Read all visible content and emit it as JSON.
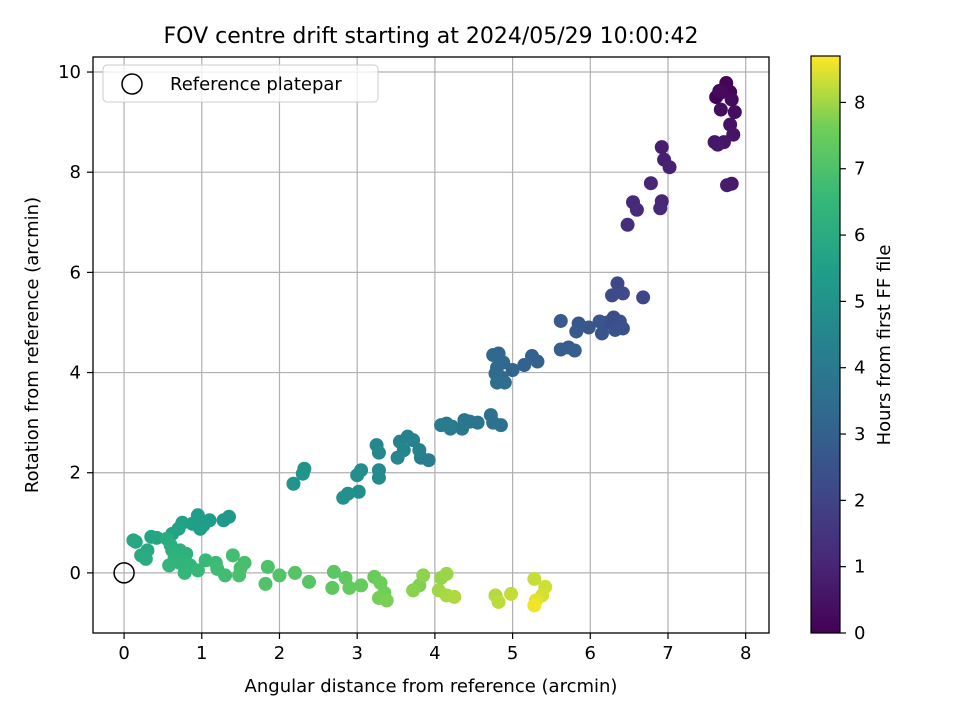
{
  "chart_data": {
    "type": "scatter",
    "title": "FOV centre drift starting at 2024/05/29 10:00:42",
    "xlabel": "Angular distance from reference (arcmin)",
    "ylabel": "Rotation from reference (arcmin)",
    "xlim": [
      -0.4,
      8.3
    ],
    "ylim": [
      -1.2,
      10.3
    ],
    "xticks": [
      "0",
      "1",
      "2",
      "3",
      "4",
      "5",
      "6",
      "7",
      "8"
    ],
    "yticks": [
      "0",
      "2",
      "4",
      "6",
      "8",
      "10"
    ],
    "grid": true,
    "legend": {
      "position": "top-left",
      "entries": [
        "Reference platepar"
      ]
    },
    "reference_point": {
      "x": 0,
      "y": 0,
      "label": "Reference platepar"
    },
    "colorbar": {
      "label": "Hours from first FF file",
      "range": [
        0,
        8.7
      ],
      "ticks": [
        "0",
        "1",
        "2",
        "3",
        "4",
        "5",
        "6",
        "7",
        "8"
      ],
      "colormap": "viridis"
    },
    "series": [
      {
        "points": [
          {
            "x": 7.62,
            "y": 9.5,
            "c": 0.05
          },
          {
            "x": 7.75,
            "y": 9.78,
            "c": 0.1
          },
          {
            "x": 7.8,
            "y": 9.6,
            "c": 0.15
          },
          {
            "x": 7.7,
            "y": 9.6,
            "c": 0.2
          },
          {
            "x": 7.66,
            "y": 9.62,
            "c": 0.25
          },
          {
            "x": 7.82,
            "y": 9.45,
            "c": 0.3
          },
          {
            "x": 7.86,
            "y": 9.2,
            "c": 0.35
          },
          {
            "x": 7.68,
            "y": 9.25,
            "c": 0.4
          },
          {
            "x": 7.8,
            "y": 8.95,
            "c": 0.45
          },
          {
            "x": 7.84,
            "y": 8.75,
            "c": 0.5
          },
          {
            "x": 7.72,
            "y": 8.6,
            "c": 0.55
          },
          {
            "x": 7.6,
            "y": 8.6,
            "c": 0.6
          },
          {
            "x": 7.64,
            "y": 8.55,
            "c": 0.65
          },
          {
            "x": 7.82,
            "y": 7.77,
            "c": 0.7
          },
          {
            "x": 7.76,
            "y": 7.74,
            "c": 0.75
          },
          {
            "x": 6.92,
            "y": 8.5,
            "c": 0.8
          },
          {
            "x": 6.95,
            "y": 8.25,
            "c": 0.85
          },
          {
            "x": 7.02,
            "y": 8.1,
            "c": 0.9
          },
          {
            "x": 6.78,
            "y": 7.78,
            "c": 1.0
          },
          {
            "x": 6.92,
            "y": 7.42,
            "c": 1.05
          },
          {
            "x": 6.9,
            "y": 7.28,
            "c": 1.1
          },
          {
            "x": 6.55,
            "y": 7.4,
            "c": 1.15
          },
          {
            "x": 6.6,
            "y": 7.25,
            "c": 1.2
          },
          {
            "x": 6.48,
            "y": 6.95,
            "c": 1.3
          },
          {
            "x": 6.68,
            "y": 5.5,
            "c": 2.1
          },
          {
            "x": 6.35,
            "y": 5.78,
            "c": 2.15
          },
          {
            "x": 6.42,
            "y": 5.58,
            "c": 2.2
          },
          {
            "x": 6.28,
            "y": 5.54,
            "c": 2.25
          },
          {
            "x": 6.3,
            "y": 5.1,
            "c": 2.3
          },
          {
            "x": 6.22,
            "y": 5.0,
            "c": 2.35
          },
          {
            "x": 6.38,
            "y": 5.02,
            "c": 2.4
          },
          {
            "x": 6.42,
            "y": 4.88,
            "c": 2.45
          },
          {
            "x": 6.32,
            "y": 4.85,
            "c": 2.5
          },
          {
            "x": 6.15,
            "y": 4.78,
            "c": 2.55
          },
          {
            "x": 6.12,
            "y": 5.02,
            "c": 2.6
          },
          {
            "x": 5.98,
            "y": 4.9,
            "c": 2.65
          },
          {
            "x": 5.85,
            "y": 4.98,
            "c": 2.7
          },
          {
            "x": 5.82,
            "y": 4.82,
            "c": 2.75
          },
          {
            "x": 5.62,
            "y": 5.03,
            "c": 2.8
          },
          {
            "x": 5.72,
            "y": 4.5,
            "c": 2.85
          },
          {
            "x": 5.62,
            "y": 4.46,
            "c": 2.9
          },
          {
            "x": 5.8,
            "y": 4.44,
            "c": 2.95
          },
          {
            "x": 5.25,
            "y": 4.33,
            "c": 3.0
          },
          {
            "x": 5.32,
            "y": 4.22,
            "c": 3.05
          },
          {
            "x": 5.15,
            "y": 4.15,
            "c": 3.1
          },
          {
            "x": 5.0,
            "y": 4.05,
            "c": 3.15
          },
          {
            "x": 4.82,
            "y": 4.38,
            "c": 3.2
          },
          {
            "x": 4.75,
            "y": 4.35,
            "c": 3.25
          },
          {
            "x": 4.88,
            "y": 4.2,
            "c": 3.3
          },
          {
            "x": 4.8,
            "y": 4.1,
            "c": 3.35
          },
          {
            "x": 4.78,
            "y": 3.98,
            "c": 3.4
          },
          {
            "x": 4.86,
            "y": 3.9,
            "c": 3.45
          },
          {
            "x": 4.9,
            "y": 3.8,
            "c": 3.5
          },
          {
            "x": 4.8,
            "y": 3.8,
            "c": 3.55
          },
          {
            "x": 4.72,
            "y": 3.15,
            "c": 3.6
          },
          {
            "x": 4.75,
            "y": 3.0,
            "c": 3.65
          },
          {
            "x": 4.85,
            "y": 2.95,
            "c": 3.7
          },
          {
            "x": 4.55,
            "y": 3.0,
            "c": 3.75
          },
          {
            "x": 4.45,
            "y": 3.02,
            "c": 3.8
          },
          {
            "x": 4.38,
            "y": 3.05,
            "c": 3.85
          },
          {
            "x": 4.35,
            "y": 2.88,
            "c": 3.9
          },
          {
            "x": 4.22,
            "y": 2.92,
            "c": 3.95
          },
          {
            "x": 4.15,
            "y": 2.98,
            "c": 4.0
          },
          {
            "x": 4.08,
            "y": 2.95,
            "c": 4.05
          },
          {
            "x": 4.2,
            "y": 2.88,
            "c": 4.1
          },
          {
            "x": 3.92,
            "y": 2.25,
            "c": 4.15
          },
          {
            "x": 3.82,
            "y": 2.3,
            "c": 4.2
          },
          {
            "x": 3.8,
            "y": 2.45,
            "c": 4.25
          },
          {
            "x": 3.72,
            "y": 2.65,
            "c": 4.3
          },
          {
            "x": 3.65,
            "y": 2.72,
            "c": 4.35
          },
          {
            "x": 3.55,
            "y": 2.62,
            "c": 4.4
          },
          {
            "x": 3.6,
            "y": 2.45,
            "c": 4.45
          },
          {
            "x": 3.52,
            "y": 2.3,
            "c": 4.5
          },
          {
            "x": 3.25,
            "y": 2.55,
            "c": 4.55
          },
          {
            "x": 3.28,
            "y": 2.4,
            "c": 4.6
          },
          {
            "x": 3.28,
            "y": 2.05,
            "c": 4.65
          },
          {
            "x": 3.28,
            "y": 1.9,
            "c": 4.7
          },
          {
            "x": 3.05,
            "y": 2.05,
            "c": 4.75
          },
          {
            "x": 3.0,
            "y": 1.95,
            "c": 4.8
          },
          {
            "x": 3.02,
            "y": 1.62,
            "c": 4.85
          },
          {
            "x": 2.88,
            "y": 1.58,
            "c": 4.9
          },
          {
            "x": 2.82,
            "y": 1.5,
            "c": 4.95
          },
          {
            "x": 2.32,
            "y": 2.08,
            "c": 5.0
          },
          {
            "x": 2.3,
            "y": 1.98,
            "c": 5.05
          },
          {
            "x": 2.18,
            "y": 1.78,
            "c": 5.1
          },
          {
            "x": 1.35,
            "y": 1.12,
            "c": 5.2
          },
          {
            "x": 1.28,
            "y": 1.05,
            "c": 5.25
          },
          {
            "x": 1.1,
            "y": 1.05,
            "c": 5.3
          },
          {
            "x": 1.02,
            "y": 0.95,
            "c": 5.35
          },
          {
            "x": 0.95,
            "y": 1.15,
            "c": 5.4
          },
          {
            "x": 0.98,
            "y": 0.88,
            "c": 5.45
          },
          {
            "x": 0.88,
            "y": 0.98,
            "c": 5.5
          },
          {
            "x": 0.75,
            "y": 1.0,
            "c": 5.55
          },
          {
            "x": 0.7,
            "y": 0.88,
            "c": 5.6
          },
          {
            "x": 0.62,
            "y": 0.78,
            "c": 5.65
          },
          {
            "x": 0.35,
            "y": 0.72,
            "c": 5.7
          },
          {
            "x": 0.42,
            "y": 0.7,
            "c": 5.75
          },
          {
            "x": 0.15,
            "y": 0.62,
            "c": 5.8
          },
          {
            "x": 0.12,
            "y": 0.65,
            "c": 5.85
          },
          {
            "x": 0.3,
            "y": 0.45,
            "c": 5.9
          },
          {
            "x": 0.22,
            "y": 0.35,
            "c": 5.95
          },
          {
            "x": 0.28,
            "y": 0.28,
            "c": 6.0
          },
          {
            "x": 0.55,
            "y": 0.68,
            "c": 6.05
          },
          {
            "x": 0.6,
            "y": 0.55,
            "c": 6.1
          },
          {
            "x": 0.62,
            "y": 0.45,
            "c": 6.15
          },
          {
            "x": 0.72,
            "y": 0.45,
            "c": 6.2
          },
          {
            "x": 0.8,
            "y": 0.38,
            "c": 6.25
          },
          {
            "x": 0.65,
            "y": 0.3,
            "c": 6.3
          },
          {
            "x": 0.72,
            "y": 0.2,
            "c": 6.35
          },
          {
            "x": 0.58,
            "y": 0.15,
            "c": 6.4
          },
          {
            "x": 0.85,
            "y": 0.15,
            "c": 6.45
          },
          {
            "x": 0.78,
            "y": 0.0,
            "c": 6.5
          },
          {
            "x": 0.95,
            "y": 0.05,
            "c": 6.55
          },
          {
            "x": 1.05,
            "y": 0.25,
            "c": 6.6
          },
          {
            "x": 1.18,
            "y": 0.2,
            "c": 6.65
          },
          {
            "x": 1.2,
            "y": 0.08,
            "c": 6.7
          },
          {
            "x": 1.3,
            "y": -0.05,
            "c": 6.75
          },
          {
            "x": 1.4,
            "y": 0.35,
            "c": 6.8
          },
          {
            "x": 1.5,
            "y": 0.1,
            "c": 6.85
          },
          {
            "x": 1.55,
            "y": 0.2,
            "c": 6.9
          },
          {
            "x": 1.48,
            "y": -0.05,
            "c": 6.95
          },
          {
            "x": 1.85,
            "y": 0.12,
            "c": 7.0
          },
          {
            "x": 1.82,
            "y": -0.22,
            "c": 7.05
          },
          {
            "x": 2.0,
            "y": -0.05,
            "c": 7.1
          },
          {
            "x": 2.2,
            "y": 0.0,
            "c": 7.15
          },
          {
            "x": 2.38,
            "y": -0.18,
            "c": 7.2
          },
          {
            "x": 2.7,
            "y": 0.02,
            "c": 7.25
          },
          {
            "x": 2.68,
            "y": -0.3,
            "c": 7.3
          },
          {
            "x": 2.85,
            "y": -0.1,
            "c": 7.35
          },
          {
            "x": 2.9,
            "y": -0.3,
            "c": 7.4
          },
          {
            "x": 3.05,
            "y": -0.25,
            "c": 7.45
          },
          {
            "x": 3.22,
            "y": -0.08,
            "c": 7.5
          },
          {
            "x": 3.3,
            "y": -0.2,
            "c": 7.55
          },
          {
            "x": 3.35,
            "y": -0.4,
            "c": 7.6
          },
          {
            "x": 3.28,
            "y": -0.5,
            "c": 7.65
          },
          {
            "x": 3.38,
            "y": -0.55,
            "c": 7.7
          },
          {
            "x": 3.8,
            "y": -0.25,
            "c": 7.75
          },
          {
            "x": 3.72,
            "y": -0.35,
            "c": 7.8
          },
          {
            "x": 3.85,
            "y": -0.05,
            "c": 7.85
          },
          {
            "x": 4.08,
            "y": -0.1,
            "c": 7.9
          },
          {
            "x": 4.15,
            "y": -0.02,
            "c": 7.95
          },
          {
            "x": 4.05,
            "y": -0.35,
            "c": 8.0
          },
          {
            "x": 4.15,
            "y": -0.45,
            "c": 8.05
          },
          {
            "x": 4.25,
            "y": -0.48,
            "c": 8.1
          },
          {
            "x": 4.78,
            "y": -0.45,
            "c": 8.15
          },
          {
            "x": 4.82,
            "y": -0.58,
            "c": 8.2
          },
          {
            "x": 4.98,
            "y": -0.42,
            "c": 8.25
          },
          {
            "x": 5.28,
            "y": -0.12,
            "c": 8.3
          },
          {
            "x": 5.42,
            "y": -0.28,
            "c": 8.35
          },
          {
            "x": 5.38,
            "y": -0.45,
            "c": 8.4
          },
          {
            "x": 5.3,
            "y": -0.55,
            "c": 8.5
          },
          {
            "x": 5.28,
            "y": -0.65,
            "c": 8.6
          }
        ]
      }
    ]
  }
}
